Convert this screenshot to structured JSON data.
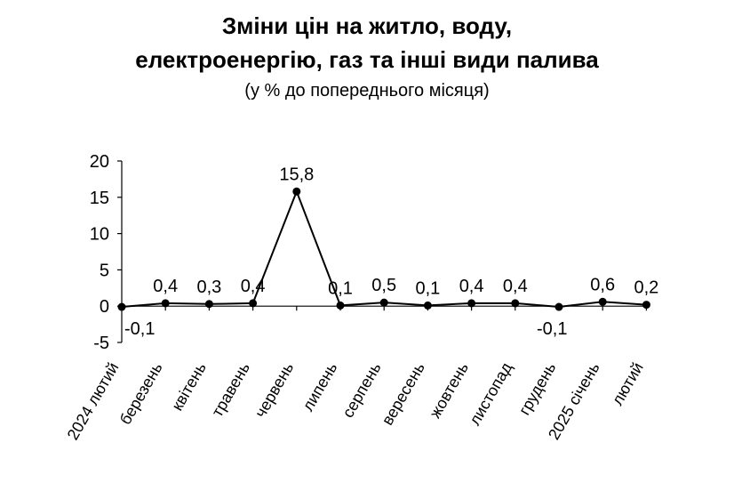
{
  "title_line1": "Зміни цін на житло, воду,",
  "title_line2": "електроенергію, газ та інші види палива",
  "subtitle": "(у % до попереднього місяця)",
  "chart_data": {
    "type": "line",
    "title": "Зміни цін на житло, воду, електроенергію, газ та інші види палива",
    "subtitle": "(у % до попереднього місяця)",
    "xlabel": "",
    "ylabel": "",
    "ylim": [
      -5,
      20
    ],
    "yticks": [
      -5,
      0,
      5,
      10,
      15,
      20
    ],
    "ytick_labels": [
      "-5",
      "0",
      "5",
      "10",
      "15",
      "20"
    ],
    "grid": false,
    "legend": "none",
    "categories": [
      "2024 лютий",
      "березень",
      "квітень",
      "травень",
      "червень",
      "липень",
      "серпень",
      "вересень",
      "жовтень",
      "листопад",
      "грудень",
      "2025 січень",
      "лютий"
    ],
    "series": [
      {
        "values": [
          -0.1,
          0.4,
          0.3,
          0.4,
          15.8,
          0.1,
          0.5,
          0.1,
          0.4,
          0.4,
          -0.1,
          0.6,
          0.2
        ],
        "data_labels": [
          "-0,1",
          "0,4",
          "0,3",
          "0,4",
          "15,8",
          "0,1",
          "0,5",
          "0,1",
          "0,4",
          "0,4",
          "-0,1",
          "0,6",
          "0,2"
        ],
        "color": "#000000",
        "marker": "circle"
      }
    ]
  }
}
